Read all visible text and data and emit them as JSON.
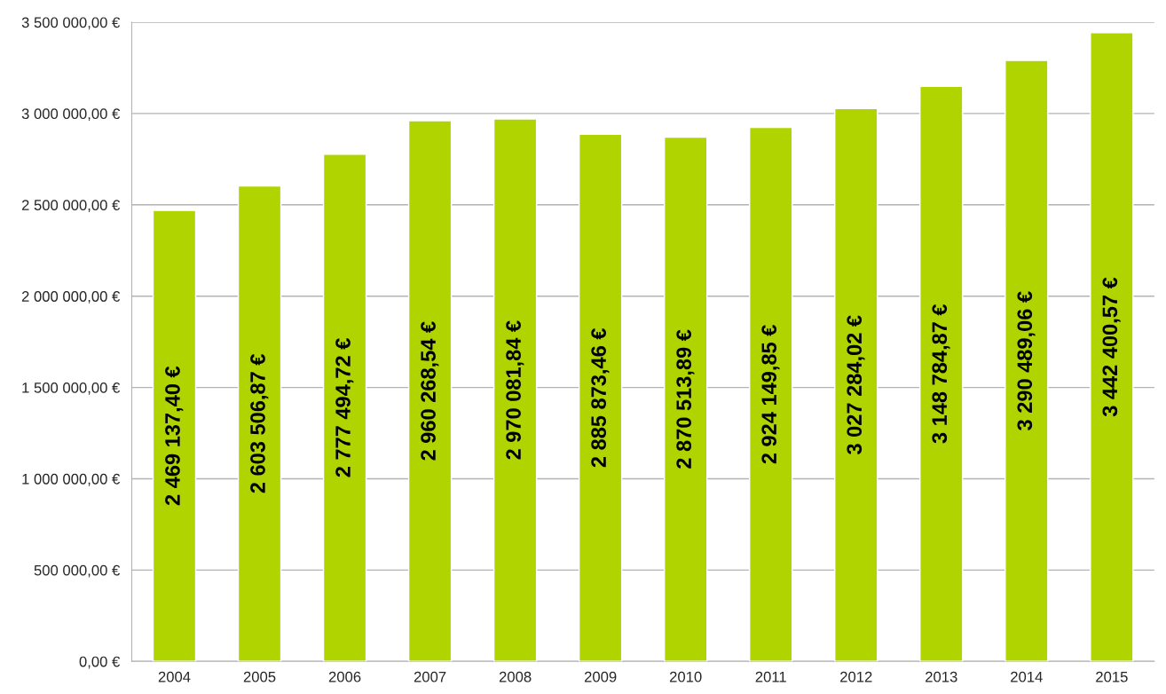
{
  "chart_data": {
    "type": "bar",
    "categories": [
      "2004",
      "2005",
      "2006",
      "2007",
      "2008",
      "2009",
      "2010",
      "2011",
      "2012",
      "2013",
      "2014",
      "2015"
    ],
    "values": [
      2469137.4,
      2603506.87,
      2777494.72,
      2960268.54,
      2970081.84,
      2885873.46,
      2870513.89,
      2924149.85,
      3027284.02,
      3148784.87,
      3290489.06,
      3442400.57
    ],
    "value_labels": [
      "2 469 137,40 €",
      "2 603 506,87 €",
      "2 777 494,72 €",
      "2 960 268,54 €",
      "2 970 081,84 €",
      "2 885 873,46 €",
      "2 870 513,89 €",
      "2 924 149,85 €",
      "3 027 284,02 €",
      "3 148 784,87 €",
      "3 290 489,06 €",
      "3 442 400,57 €"
    ],
    "color": "#b0d400",
    "ylim": [
      0,
      3500000
    ],
    "yticks": [
      {
        "value": 0,
        "label": "0,00 €"
      },
      {
        "value": 500000,
        "label": "500 000,00 €"
      },
      {
        "value": 1000000,
        "label": "1 000 000,00 €"
      },
      {
        "value": 1500000,
        "label": "1 500 000,00 €"
      },
      {
        "value": 2000000,
        "label": "2 000 000,00 €"
      },
      {
        "value": 2500000,
        "label": "2 500 000,00 €"
      },
      {
        "value": 3000000,
        "label": "3 000 000,00 €"
      },
      {
        "value": 3500000,
        "label": "3 500 000,00 €"
      }
    ],
    "grid": "y",
    "legend": false
  }
}
